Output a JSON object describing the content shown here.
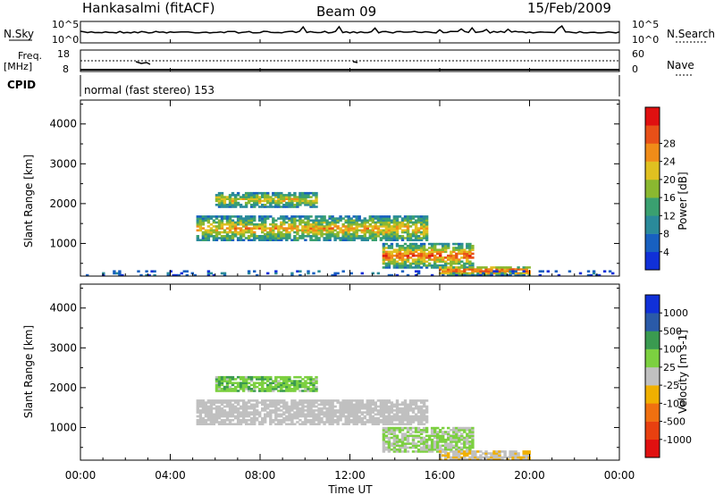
{
  "header": {
    "station": "Hankasalmi (fitACF)",
    "beam": "Beam 09",
    "date": "15/Feb/2009"
  },
  "top_panels": {
    "nsky": {
      "label": "N.Sky",
      "left_ticks": [
        "10^5",
        "10^0"
      ]
    },
    "nsearch": {
      "label": "N.Search",
      "right_ticks": [
        "10^5",
        "10^0"
      ]
    },
    "freq": {
      "label_line1": "Freq.",
      "label_line2": "[MHz]",
      "left_ticks": [
        "18",
        "8"
      ]
    },
    "nave": {
      "label": "Nave",
      "right_ticks": [
        "60",
        "0"
      ]
    },
    "cpid": {
      "label": "CPID",
      "text": "normal (fast stereo) 153"
    }
  },
  "chart_data": [
    {
      "type": "heatmap",
      "title": "",
      "xlabel": "Time UT",
      "ylabel": "Slant Range [km]",
      "xlim": [
        0,
        24
      ],
      "ylim": [
        180,
        4600
      ],
      "x_tick_labels": [
        "00:00",
        "04:00",
        "08:00",
        "12:00",
        "16:00",
        "20:00",
        "00:00"
      ],
      "y_tick_labels": [
        "1000",
        "2000",
        "3000",
        "4000"
      ],
      "colorbar": {
        "label": "Power [dB]",
        "range": [
          0,
          32
        ],
        "tick_labels": [
          "4",
          "8",
          "12",
          "16",
          "20",
          "24",
          "28"
        ],
        "colors": [
          "#1030d8",
          "#1860c0",
          "#2a8a9a",
          "#3aa070",
          "#8ab830",
          "#e0c020",
          "#f08c18",
          "#e85018",
          "#e01010"
        ]
      },
      "regions": [
        {
          "name": "upper echo band",
          "t_range": [
            6.0,
            10.5
          ],
          "range_km": [
            1900,
            2300
          ],
          "power_db": 18
        },
        {
          "name": "main echo band",
          "t_range": [
            5.2,
            15.5
          ],
          "range_km": [
            1050,
            1700
          ],
          "power_db": 20
        },
        {
          "name": "descending band",
          "t_range": [
            13.5,
            17.5
          ],
          "range_km": [
            400,
            1000
          ],
          "power_db": 24
        },
        {
          "name": "near range tail",
          "t_range": [
            16.0,
            20.0
          ],
          "range_km": [
            200,
            450
          ],
          "power_db": 26
        },
        {
          "name": "near range clutter",
          "t_range": [
            0.0,
            24.0
          ],
          "range_km": [
            180,
            350
          ],
          "power_db": 6
        }
      ]
    },
    {
      "type": "heatmap",
      "title": "",
      "xlabel": "Time UT",
      "ylabel": "Slant Range [km]",
      "xlim": [
        0,
        24
      ],
      "ylim": [
        180,
        4600
      ],
      "x_tick_labels": [
        "00:00",
        "04:00",
        "08:00",
        "12:00",
        "16:00",
        "20:00",
        "00:00"
      ],
      "y_tick_labels": [
        "1000",
        "2000",
        "3000",
        "4000"
      ],
      "colorbar": {
        "label": "Velocity [m s-1]",
        "range": [
          -1200,
          1200
        ],
        "tick_labels": [
          "1000",
          "500",
          "100",
          "25",
          "-25",
          "-100",
          "-500",
          "-1000"
        ],
        "colors": [
          "#1030d8",
          "#2a5aa8",
          "#3a9a50",
          "#7cd040",
          "#c0c0c0",
          "#f0b000",
          "#f07010",
          "#e84010",
          "#e01010"
        ]
      },
      "regions": [
        {
          "name": "ground scatter band",
          "t_range": [
            5.2,
            15.5
          ],
          "range_km": [
            1050,
            1700
          ],
          "velocity": 0
        },
        {
          "name": "upper echo band",
          "t_range": [
            6.0,
            10.5
          ],
          "range_km": [
            1900,
            2300
          ],
          "velocity": -300
        },
        {
          "name": "descending band",
          "t_range": [
            13.5,
            17.5
          ],
          "range_km": [
            400,
            1000
          ],
          "velocity": -150
        },
        {
          "name": "near range tail",
          "t_range": [
            16.0,
            20.0
          ],
          "range_km": [
            200,
            450
          ],
          "velocity": 80
        }
      ]
    }
  ]
}
